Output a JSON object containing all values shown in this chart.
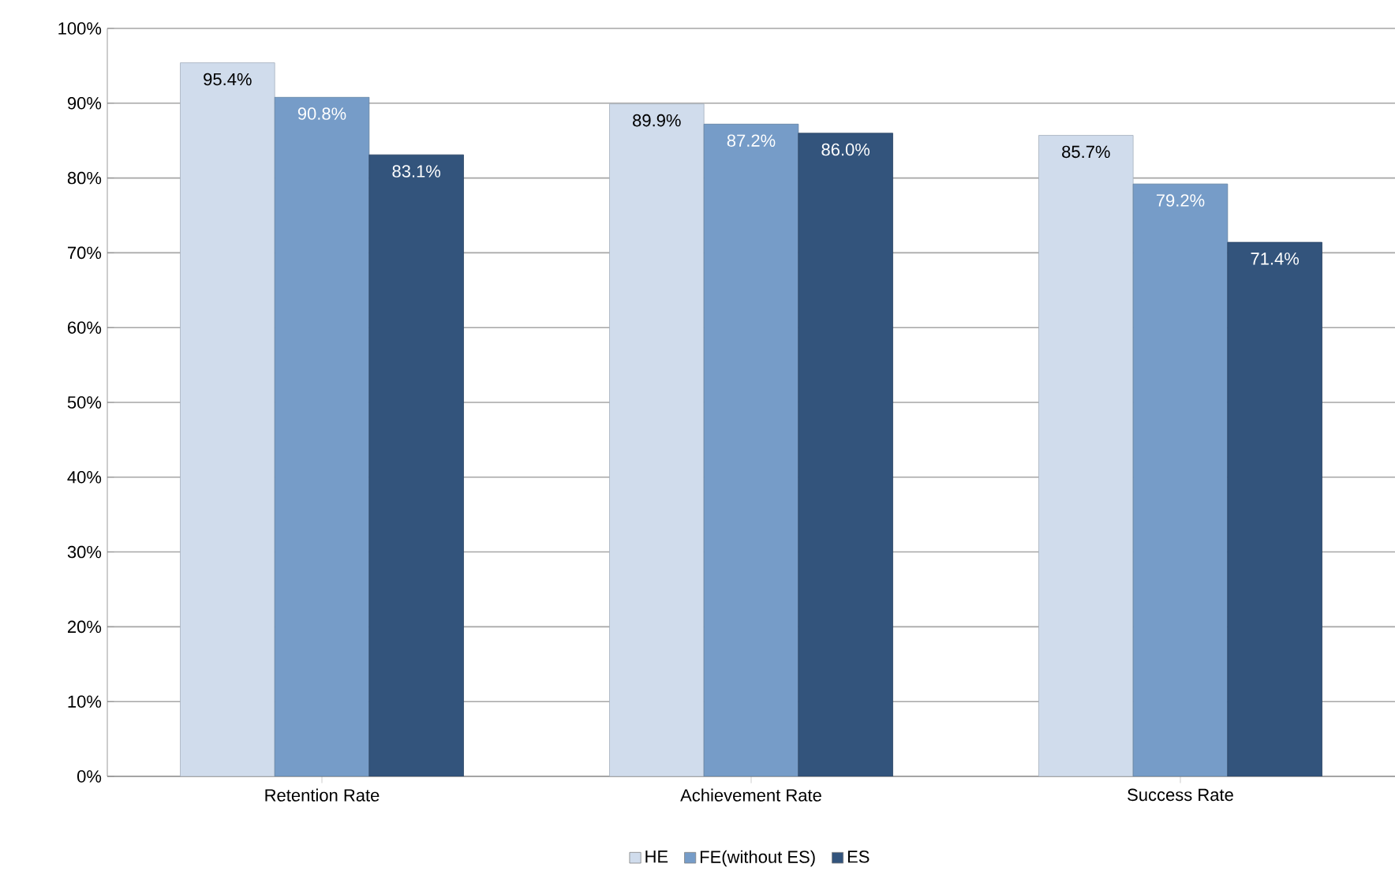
{
  "chart_data": {
    "type": "bar",
    "categories": [
      "Retention Rate",
      "Achievement Rate",
      "Success Rate"
    ],
    "series": [
      {
        "name": "HE",
        "color": "#d0dcec",
        "values": [
          95.4,
          89.9,
          85.7
        ],
        "value_labels": [
          "95.4%",
          "89.9%",
          "85.7%"
        ]
      },
      {
        "name": "FE(without ES)",
        "color": "#769cc8",
        "values": [
          90.8,
          87.2,
          79.2
        ],
        "value_labels": [
          "90.8%",
          "87.2%",
          "79.2%"
        ]
      },
      {
        "name": "ES",
        "color": "#33547c",
        "values": [
          83.1,
          86.0,
          71.4
        ],
        "value_labels": [
          "83.1%",
          "86.0%",
          "71.4%"
        ]
      }
    ],
    "ylim": [
      0,
      100
    ],
    "yticks": [
      {
        "value": 0,
        "label": "0%"
      },
      {
        "value": 10,
        "label": "10%"
      },
      {
        "value": 20,
        "label": "20%"
      },
      {
        "value": 30,
        "label": "30%"
      },
      {
        "value": 40,
        "label": "40%"
      },
      {
        "value": 50,
        "label": "50%"
      },
      {
        "value": 60,
        "label": "60%"
      },
      {
        "value": 70,
        "label": "70%"
      },
      {
        "value": 80,
        "label": "80%"
      },
      {
        "value": 90,
        "label": "90%"
      },
      {
        "value": 100,
        "label": "100%"
      }
    ],
    "grid": "y",
    "legend": "bottom"
  }
}
